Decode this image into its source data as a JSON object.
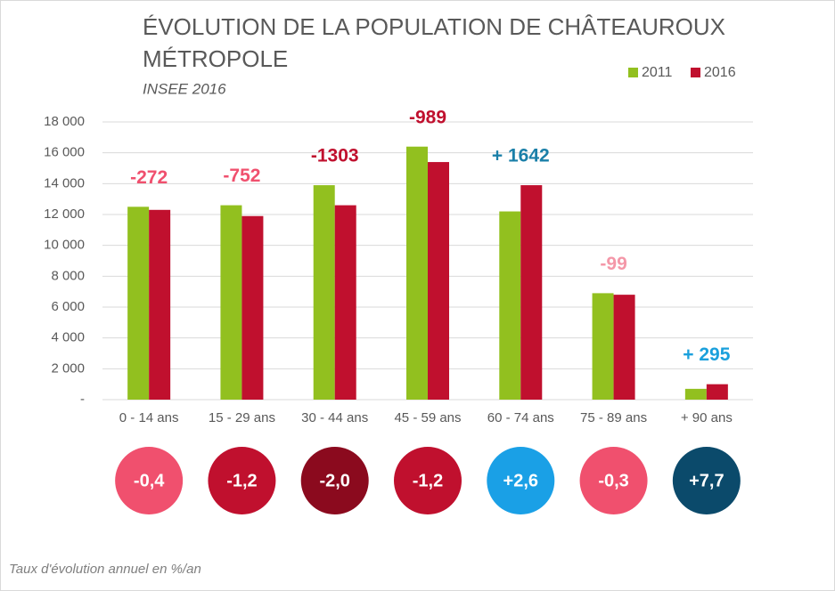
{
  "chart_data": {
    "type": "bar",
    "title": [
      "ÉVOLUTION DE LA POPULATION DE CHÂTEAUROUX",
      "MÉTROPOLE"
    ],
    "subtitle": "INSEE 2016",
    "categories": [
      "0 - 14 ans",
      "15 - 29 ans",
      "30 - 44 ans",
      "45 - 59 ans",
      "60 - 74 ans",
      "75 - 89 ans",
      "+ 90 ans"
    ],
    "series": [
      {
        "name": "2011",
        "color": "#92c01f",
        "values": [
          12500,
          12600,
          13900,
          16400,
          12200,
          6900,
          700
        ]
      },
      {
        "name": "2016",
        "color": "#c0102e",
        "values": [
          12300,
          11900,
          12600,
          15400,
          13900,
          6800,
          1000
        ]
      }
    ],
    "ylim": [
      0,
      18000
    ],
    "yticks": [
      {
        "value": 0,
        "label": "-"
      },
      {
        "value": 2000,
        "label": "2 000"
      },
      {
        "value": 4000,
        "label": "4 000"
      },
      {
        "value": 6000,
        "label": "6 000"
      },
      {
        "value": 8000,
        "label": "8 000"
      },
      {
        "value": 10000,
        "label": "10 000"
      },
      {
        "value": 12000,
        "label": "12 000"
      },
      {
        "value": 14000,
        "label": "14 000"
      },
      {
        "value": 16000,
        "label": "16 000"
      },
      {
        "value": 18000,
        "label": "18 000"
      }
    ],
    "grid": true,
    "legend": "top-right",
    "differences": [
      {
        "label": "-272",
        "color": "#f0506e"
      },
      {
        "label": "-752",
        "color": "#f0506e"
      },
      {
        "label": "-1303",
        "color": "#c0102e"
      },
      {
        "label": "-989",
        "color": "#c0102e"
      },
      {
        "label": "+ 1642",
        "color": "#1a7fa8"
      },
      {
        "label": "-99",
        "color": "#f497a8"
      },
      {
        "label": "+ 295",
        "color": "#1aa0dc"
      }
    ],
    "rates": [
      {
        "label": "-0,4",
        "color": "#f0506e"
      },
      {
        "label": "-1,2",
        "color": "#c0102e"
      },
      {
        "label": "-2,0",
        "color": "#8b0a1e"
      },
      {
        "label": "-1,2",
        "color": "#c0102e"
      },
      {
        "label": "+2,6",
        "color": "#1aa0e6"
      },
      {
        "label": "-0,3",
        "color": "#f0506e"
      },
      {
        "label": "+7,7",
        "color": "#0b4a6b"
      }
    ],
    "footnote": "Taux d'évolution annuel en %/an"
  }
}
